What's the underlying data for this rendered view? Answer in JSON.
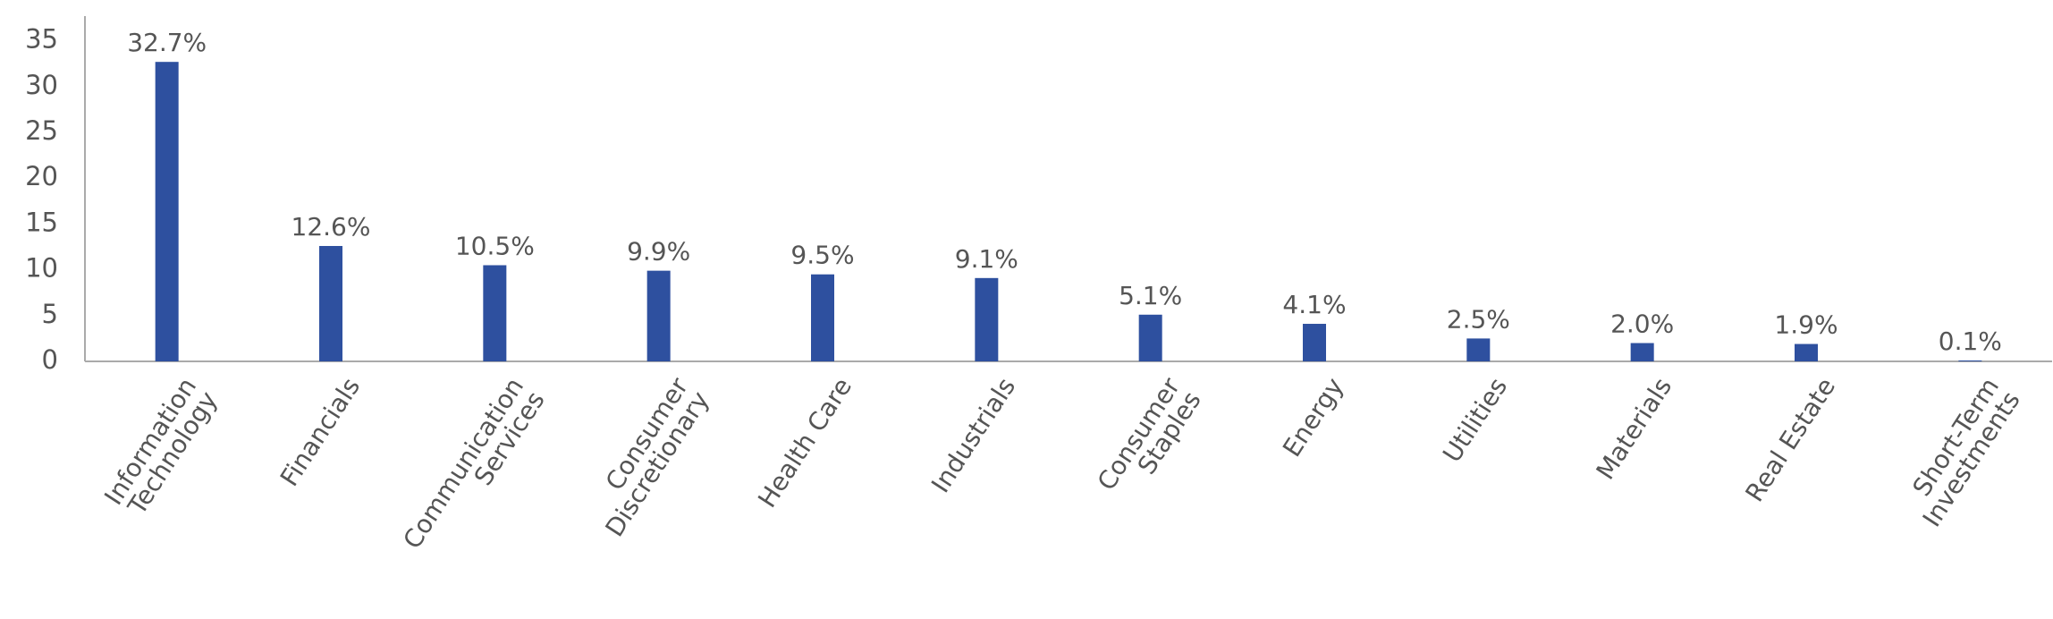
{
  "chart_data": {
    "type": "bar",
    "categories": [
      "Information Technology",
      "Financials",
      "Communication Services",
      "Consumer Discretionary",
      "Health Care",
      "Industrials",
      "Consumer Staples",
      "Energy",
      "Utilities",
      "Materials",
      "Real Estate",
      "Short-Term Investments"
    ],
    "values": [
      32.7,
      12.6,
      10.5,
      9.9,
      9.5,
      9.1,
      5.1,
      4.1,
      2.5,
      2.0,
      1.9,
      0.1
    ],
    "value_labels": [
      "32.7%",
      "12.6%",
      "10.5%",
      "9.9%",
      "9.5%",
      "9.1%",
      "5.1%",
      "4.1%",
      "2.5%",
      "2.0%",
      "1.9%",
      "0.1%"
    ],
    "color": "#2e509f",
    "ylim": [
      0,
      37.7
    ],
    "yticks": [
      0,
      5,
      10,
      15,
      20,
      25,
      30,
      35
    ],
    "grid": false
  }
}
